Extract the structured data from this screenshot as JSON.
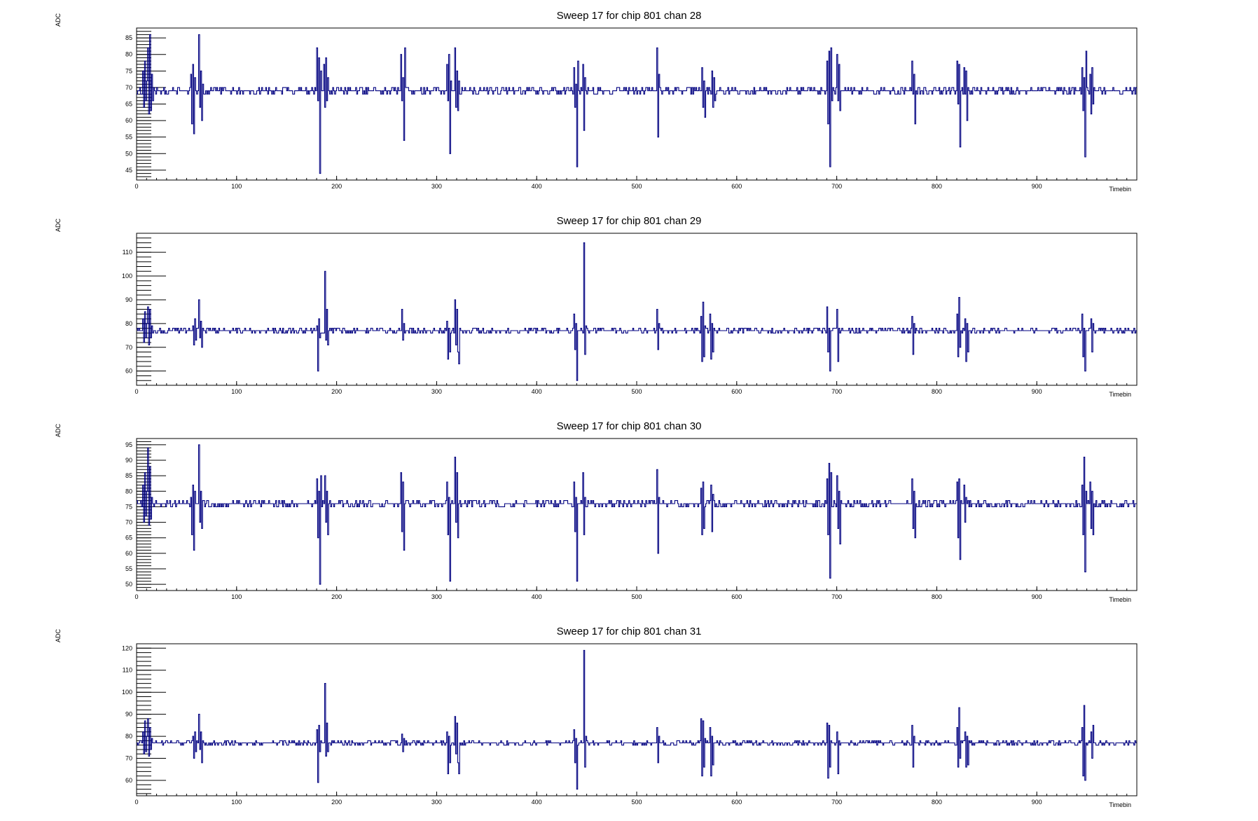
{
  "chart_data": [
    {
      "type": "line",
      "title": "Sweep 17 for chip 801 chan 28",
      "xlabel": "Timebin",
      "ylabel": "ADC",
      "xlim": [
        0,
        1000
      ],
      "ylim": [
        42,
        88
      ],
      "x_ticks": [
        0,
        100,
        200,
        300,
        400,
        500,
        600,
        700,
        800,
        900
      ],
      "y_ticks": [
        45,
        50,
        55,
        60,
        65,
        70,
        75,
        80,
        85
      ],
      "baseline": 69,
      "noise": 1.5,
      "color": "#000080",
      "seed": 28,
      "events": [
        {
          "x": 6,
          "values": [
            75,
            64,
            78,
            66,
            72,
            68
          ]
        },
        {
          "x": 11,
          "values": [
            82,
            62,
            86,
            63,
            74,
            66,
            70
          ]
        },
        {
          "x": 54,
          "values": [
            74,
            59,
            77,
            56,
            73
          ]
        },
        {
          "x": 62,
          "values": [
            86,
            64,
            75,
            60,
            71
          ]
        },
        {
          "x": 180,
          "values": [
            82,
            66,
            79,
            44,
            75
          ]
        },
        {
          "x": 187,
          "values": [
            77,
            64,
            79,
            66,
            73
          ]
        },
        {
          "x": 264,
          "values": [
            80,
            66,
            73,
            54,
            82,
            70
          ]
        },
        {
          "x": 310,
          "values": [
            77,
            66,
            80,
            50,
            72
          ]
        },
        {
          "x": 318,
          "values": [
            82,
            64,
            75,
            63,
            72
          ]
        },
        {
          "x": 437,
          "values": [
            76,
            64,
            71,
            46,
            78
          ]
        },
        {
          "x": 446,
          "values": [
            77,
            57,
            73
          ]
        },
        {
          "x": 520,
          "values": [
            82,
            55,
            74,
            70
          ]
        },
        {
          "x": 565,
          "values": [
            76,
            64,
            72,
            61
          ]
        },
        {
          "x": 575,
          "values": [
            75,
            64,
            73,
            66
          ]
        },
        {
          "x": 690,
          "values": [
            78,
            59,
            81,
            46,
            82,
            66
          ]
        },
        {
          "x": 700,
          "values": [
            80,
            66,
            77,
            63
          ]
        },
        {
          "x": 775,
          "values": [
            78,
            68,
            74,
            59
          ]
        },
        {
          "x": 820,
          "values": [
            78,
            65,
            77,
            52
          ]
        },
        {
          "x": 827,
          "values": [
            76,
            68,
            75,
            60
          ]
        },
        {
          "x": 945,
          "values": [
            76,
            63,
            73,
            49,
            81
          ]
        },
        {
          "x": 953,
          "values": [
            74,
            62,
            76,
            65
          ]
        }
      ]
    },
    {
      "type": "line",
      "title": "Sweep 17 for chip 801 chan 29",
      "xlabel": "Timebin",
      "ylabel": "ADC",
      "xlim": [
        0,
        1000
      ],
      "ylim": [
        54,
        118
      ],
      "x_ticks": [
        0,
        100,
        200,
        300,
        400,
        500,
        600,
        700,
        800,
        900
      ],
      "y_ticks": [
        60,
        70,
        80,
        90,
        100,
        110
      ],
      "baseline": 77,
      "noise": 1.5,
      "color": "#000080",
      "seed": 29,
      "events": [
        {
          "x": 6,
          "values": [
            82,
            72,
            85,
            74,
            80
          ]
        },
        {
          "x": 11,
          "values": [
            87,
            71,
            86,
            74,
            79
          ]
        },
        {
          "x": 56,
          "values": [
            79,
            71,
            82,
            73
          ]
        },
        {
          "x": 62,
          "values": [
            90,
            74,
            81,
            70,
            78
          ]
        },
        {
          "x": 180,
          "values": [
            79,
            60,
            82,
            74
          ]
        },
        {
          "x": 188,
          "values": [
            102,
            73,
            86,
            71
          ]
        },
        {
          "x": 265,
          "values": [
            86,
            73,
            80
          ]
        },
        {
          "x": 310,
          "values": [
            81,
            65,
            78,
            68
          ]
        },
        {
          "x": 318,
          "values": [
            90,
            71,
            86,
            68,
            63
          ]
        },
        {
          "x": 437,
          "values": [
            84,
            69,
            80,
            56
          ]
        },
        {
          "x": 447,
          "values": [
            114,
            67,
            79
          ]
        },
        {
          "x": 520,
          "values": [
            86,
            69,
            80
          ]
        },
        {
          "x": 564,
          "values": [
            83,
            64,
            89,
            66,
            79
          ]
        },
        {
          "x": 573,
          "values": [
            84,
            65,
            80,
            68
          ]
        },
        {
          "x": 690,
          "values": [
            87,
            68,
            78,
            60
          ]
        },
        {
          "x": 700,
          "values": [
            86,
            64,
            78
          ]
        },
        {
          "x": 775,
          "values": [
            83,
            67,
            80
          ]
        },
        {
          "x": 820,
          "values": [
            84,
            66,
            91,
            70
          ]
        },
        {
          "x": 828,
          "values": [
            82,
            64,
            80,
            68
          ]
        },
        {
          "x": 945,
          "values": [
            84,
            66,
            78,
            60
          ]
        },
        {
          "x": 954,
          "values": [
            82,
            68,
            80
          ]
        }
      ]
    },
    {
      "type": "line",
      "title": "Sweep 17 for chip 801 chan 30",
      "xlabel": "Timebin",
      "ylabel": "ADC",
      "xlim": [
        0,
        1000
      ],
      "ylim": [
        48,
        97
      ],
      "x_ticks": [
        0,
        100,
        200,
        300,
        400,
        500,
        600,
        700,
        800,
        900
      ],
      "y_ticks": [
        50,
        55,
        60,
        65,
        70,
        75,
        80,
        85,
        90,
        95
      ],
      "baseline": 76,
      "noise": 1.5,
      "color": "#000080",
      "seed": 30,
      "events": [
        {
          "x": 6,
          "values": [
            82,
            70,
            86,
            72,
            80
          ]
        },
        {
          "x": 11,
          "values": [
            94,
            69,
            88,
            71,
            78
          ]
        },
        {
          "x": 54,
          "values": [
            78,
            66,
            82,
            61,
            80
          ]
        },
        {
          "x": 62,
          "values": [
            95,
            70,
            80,
            68
          ]
        },
        {
          "x": 180,
          "values": [
            84,
            65,
            80,
            50,
            85
          ]
        },
        {
          "x": 188,
          "values": [
            85,
            70,
            80,
            66
          ]
        },
        {
          "x": 264,
          "values": [
            86,
            67,
            83,
            61
          ]
        },
        {
          "x": 310,
          "values": [
            83,
            66,
            78,
            51
          ]
        },
        {
          "x": 318,
          "values": [
            91,
            70,
            86,
            65
          ]
        },
        {
          "x": 437,
          "values": [
            83,
            67,
            78,
            51
          ]
        },
        {
          "x": 446,
          "values": [
            86,
            66,
            78
          ]
        },
        {
          "x": 520,
          "values": [
            87,
            60,
            78
          ]
        },
        {
          "x": 564,
          "values": [
            81,
            66,
            83,
            68
          ]
        },
        {
          "x": 574,
          "values": [
            82,
            67,
            79
          ]
        },
        {
          "x": 690,
          "values": [
            84,
            66,
            89,
            52,
            86
          ]
        },
        {
          "x": 700,
          "values": [
            85,
            68,
            80,
            63
          ]
        },
        {
          "x": 775,
          "values": [
            84,
            68,
            80,
            65
          ]
        },
        {
          "x": 820,
          "values": [
            83,
            65,
            84,
            58
          ]
        },
        {
          "x": 827,
          "values": [
            82,
            70,
            78
          ]
        },
        {
          "x": 945,
          "values": [
            82,
            66,
            91,
            54,
            80
          ]
        },
        {
          "x": 953,
          "values": [
            83,
            68,
            80,
            66
          ]
        }
      ]
    },
    {
      "type": "line",
      "title": "Sweep 17 for chip 801 chan 31",
      "xlabel": "Timebin",
      "ylabel": "ADC",
      "xlim": [
        0,
        1000
      ],
      "ylim": [
        53,
        122
      ],
      "x_ticks": [
        0,
        100,
        200,
        300,
        400,
        500,
        600,
        700,
        800,
        900
      ],
      "y_ticks": [
        60,
        70,
        80,
        90,
        100,
        110,
        120
      ],
      "baseline": 77,
      "noise": 1.3,
      "color": "#000080",
      "seed": 31,
      "events": [
        {
          "x": 6,
          "values": [
            82,
            72,
            87,
            73,
            80
          ]
        },
        {
          "x": 11,
          "values": [
            88,
            71,
            84,
            74,
            79
          ]
        },
        {
          "x": 56,
          "values": [
            80,
            70,
            82,
            73
          ]
        },
        {
          "x": 62,
          "values": [
            90,
            74,
            82,
            68,
            78
          ]
        },
        {
          "x": 180,
          "values": [
            83,
            59,
            85,
            73
          ]
        },
        {
          "x": 188,
          "values": [
            104,
            71,
            86,
            73
          ]
        },
        {
          "x": 265,
          "values": [
            81,
            73,
            79
          ]
        },
        {
          "x": 310,
          "values": [
            82,
            63,
            80,
            68
          ]
        },
        {
          "x": 318,
          "values": [
            89,
            72,
            86,
            68,
            63
          ]
        },
        {
          "x": 437,
          "values": [
            83,
            68,
            79,
            56
          ]
        },
        {
          "x": 447,
          "values": [
            119,
            66,
            80
          ]
        },
        {
          "x": 520,
          "values": [
            84,
            68,
            80
          ]
        },
        {
          "x": 564,
          "values": [
            88,
            62,
            87,
            66,
            79
          ]
        },
        {
          "x": 573,
          "values": [
            84,
            62,
            80,
            67
          ]
        },
        {
          "x": 690,
          "values": [
            86,
            61,
            85,
            66
          ]
        },
        {
          "x": 700,
          "values": [
            82,
            63,
            78
          ]
        },
        {
          "x": 775,
          "values": [
            85,
            66,
            80
          ]
        },
        {
          "x": 820,
          "values": [
            84,
            66,
            93,
            70
          ]
        },
        {
          "x": 828,
          "values": [
            82,
            66,
            80,
            67
          ]
        },
        {
          "x": 945,
          "values": [
            84,
            62,
            94,
            60
          ]
        },
        {
          "x": 954,
          "values": [
            82,
            70,
            85
          ]
        }
      ]
    }
  ]
}
